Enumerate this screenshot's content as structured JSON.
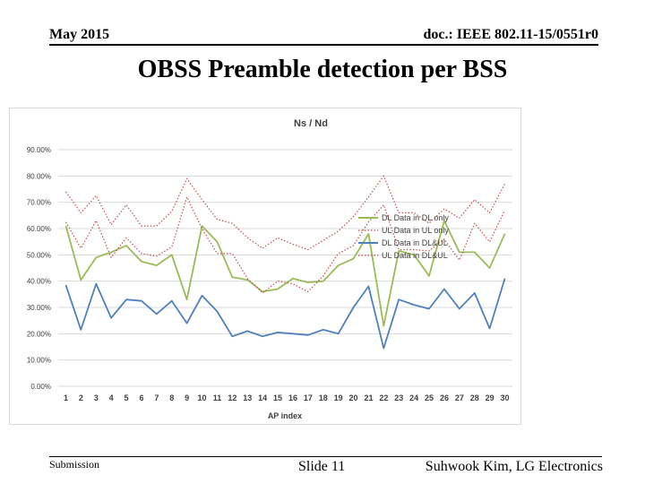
{
  "header": {
    "date": "May 2015",
    "doc_id": "doc.: IEEE 802.11-15/0551r0"
  },
  "slide": {
    "title": "OBSS Preamble detection per BSS"
  },
  "footer": {
    "submission": "Submission",
    "slide_number": "Slide 11",
    "author": "Suhwook Kim, LG Electronics"
  },
  "colors": {
    "green": "#9bbb59",
    "blue": "#4f81bd",
    "red": "#c0504d",
    "grid": "#d9d9d9",
    "frame": "#d9d9d9"
  },
  "chart_data": {
    "type": "line",
    "title": "Ns / Nd",
    "xlabel": "AP index",
    "ylabel": "",
    "ylim": [
      0,
      0.9
    ],
    "y_ticks": [
      "0.00%",
      "10.00%",
      "20.00%",
      "30.00%",
      "40.00%",
      "50.00%",
      "60.00%",
      "70.00%",
      "80.00%",
      "90.00%"
    ],
    "categories": [
      "1",
      "2",
      "3",
      "4",
      "5",
      "6",
      "7",
      "8",
      "9",
      "10",
      "11",
      "12",
      "13",
      "14",
      "15",
      "16",
      "17",
      "18",
      "19",
      "20",
      "21",
      "22",
      "23",
      "24",
      "25",
      "26",
      "27",
      "28",
      "29",
      "30"
    ],
    "legend_position": "right",
    "series": [
      {
        "name": "DL Data in DL only",
        "color": "#9bbb59",
        "dash": "solid",
        "values": [
          0.61,
          0.405,
          0.49,
          0.51,
          0.535,
          0.475,
          0.46,
          0.5,
          0.33,
          0.61,
          0.55,
          0.415,
          0.405,
          0.36,
          0.37,
          0.41,
          0.395,
          0.4,
          0.46,
          0.485,
          0.58,
          0.23,
          0.515,
          0.5,
          0.42,
          0.63,
          0.51,
          0.51,
          0.45,
          0.58
        ]
      },
      {
        "name": "UL Data in UL only",
        "color": "#c0504d",
        "dash": "dotted",
        "values": [
          0.74,
          0.66,
          0.725,
          0.615,
          0.69,
          0.61,
          0.61,
          0.665,
          0.79,
          0.71,
          0.635,
          0.62,
          0.565,
          0.525,
          0.565,
          0.54,
          0.52,
          0.555,
          0.59,
          0.645,
          0.72,
          0.8,
          0.66,
          0.66,
          0.62,
          0.675,
          0.64,
          0.71,
          0.66,
          0.77
        ]
      },
      {
        "name": "DL Data in DL&UL",
        "color": "#4f81bd",
        "dash": "solid",
        "values": [
          0.385,
          0.215,
          0.39,
          0.26,
          0.33,
          0.325,
          0.275,
          0.325,
          0.24,
          0.345,
          0.285,
          0.19,
          0.21,
          0.19,
          0.205,
          0.2,
          0.195,
          0.215,
          0.2,
          0.3,
          0.38,
          0.145,
          0.33,
          0.31,
          0.295,
          0.37,
          0.295,
          0.355,
          0.22,
          0.41
        ]
      },
      {
        "name": "UL Data in DL&UL",
        "color": "#c0504d",
        "dash": "dotted",
        "values": [
          0.625,
          0.525,
          0.63,
          0.49,
          0.565,
          0.505,
          0.495,
          0.53,
          0.72,
          0.6,
          0.505,
          0.505,
          0.41,
          0.355,
          0.4,
          0.39,
          0.36,
          0.42,
          0.505,
          0.535,
          0.625,
          0.69,
          0.52,
          0.52,
          0.515,
          0.56,
          0.48,
          0.62,
          0.55,
          0.67
        ]
      }
    ]
  }
}
